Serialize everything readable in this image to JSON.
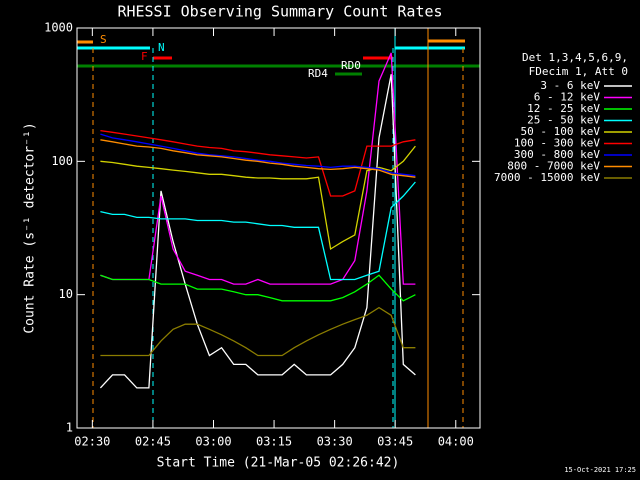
{
  "chart_data": {
    "type": "line",
    "title": "RHESSI Observing Summary Count Rates",
    "x_label": "Start Time (21-Mar-05 02:26:42)",
    "y_label": "Count Rate (s⁻¹ detector⁻¹)",
    "footer": "15-Oct-2021 17:25",
    "legend_title": [
      "Det 1,3,4,5,6,9,",
      "FDecim 1, Att 0"
    ],
    "annotations": [
      "S",
      "N",
      "F",
      "RD0",
      "RD4"
    ],
    "log_y": true,
    "xlim": [
      146.2,
      246.0
    ],
    "ylim": [
      1,
      1000
    ],
    "xticks": [
      {
        "value": 150,
        "label": "02:30"
      },
      {
        "value": 165,
        "label": "02:45"
      },
      {
        "value": 180,
        "label": "03:00"
      },
      {
        "value": 195,
        "label": "03:15"
      },
      {
        "value": 210,
        "label": "03:30"
      },
      {
        "value": 225,
        "label": "03:45"
      },
      {
        "value": 240,
        "label": "04:00"
      }
    ],
    "yticks": [
      1,
      10,
      100,
      1000
    ],
    "x": [
      152,
      155,
      158,
      161,
      164,
      167,
      170,
      173,
      176,
      179,
      182,
      185,
      188,
      191,
      194,
      197,
      200,
      203,
      206,
      209,
      212,
      215,
      218,
      221,
      224,
      227,
      230
    ],
    "series": [
      {
        "name": "3 - 6 keV",
        "color": "#ffffff",
        "values": [
          2,
          2.5,
          2.5,
          2,
          2,
          60,
          25,
          12,
          6,
          3.5,
          4,
          3,
          3,
          2.5,
          2.5,
          2.5,
          3,
          2.5,
          2.5,
          2.5,
          3,
          4,
          8,
          150,
          450,
          3,
          2.5
        ]
      },
      {
        "name": "6 - 12 keV",
        "color": "#ff00ff",
        "values": [
          14,
          13,
          13,
          13,
          13,
          55,
          22,
          15,
          14,
          13,
          13,
          12,
          12,
          13,
          12,
          12,
          12,
          12,
          12,
          12,
          13,
          18,
          60,
          400,
          650,
          12,
          12
        ]
      },
      {
        "name": "12 - 25 keV",
        "color": "#00ff00",
        "values": [
          14,
          13,
          13,
          13,
          13,
          12,
          12,
          12,
          11,
          11,
          11,
          10.5,
          10,
          10,
          9.5,
          9,
          9,
          9,
          9,
          9,
          9.5,
          10.5,
          12,
          14,
          11,
          9,
          10
        ]
      },
      {
        "name": "25 - 50 keV",
        "color": "#00ffff",
        "values": [
          42,
          40,
          40,
          38,
          38,
          37,
          37,
          37,
          36,
          36,
          36,
          35,
          35,
          34,
          33,
          33,
          32,
          32,
          32,
          13,
          13,
          13,
          14,
          15,
          45,
          55,
          70
        ]
      },
      {
        "name": "50 - 100 keV",
        "color": "#d2d200",
        "values": [
          100,
          98,
          95,
          92,
          90,
          88,
          86,
          84,
          82,
          80,
          80,
          78,
          76,
          75,
          75,
          74,
          74,
          74,
          76,
          22,
          25,
          28,
          85,
          90,
          85,
          100,
          130
        ]
      },
      {
        "name": "100 - 300 keV",
        "color": "#ff0000",
        "values": [
          170,
          165,
          160,
          155,
          150,
          145,
          140,
          135,
          130,
          127,
          125,
          120,
          118,
          115,
          112,
          110,
          108,
          106,
          108,
          55,
          55,
          60,
          130,
          130,
          130,
          140,
          145
        ]
      },
      {
        "name": "300 - 800 keV",
        "color": "#0000ff",
        "values": [
          160,
          150,
          145,
          140,
          135,
          130,
          125,
          120,
          115,
          112,
          110,
          108,
          105,
          102,
          100,
          97,
          95,
          93,
          92,
          90,
          92,
          92,
          90,
          88,
          82,
          80,
          78
        ]
      },
      {
        "name": "800 - 7000 keV",
        "color": "#ff8c00",
        "values": [
          145,
          140,
          135,
          130,
          128,
          125,
          120,
          116,
          112,
          110,
          108,
          105,
          102,
          100,
          97,
          95,
          92,
          90,
          88,
          87,
          88,
          90,
          88,
          86,
          80,
          78,
          76
        ]
      },
      {
        "name": "7000 - 15000 keV",
        "color": "#8b7d00",
        "values": [
          3.5,
          3.5,
          3.5,
          3.5,
          3.5,
          4.5,
          5.5,
          6,
          6,
          5.5,
          5,
          4.5,
          4,
          3.5,
          3.5,
          3.5,
          4,
          4.5,
          5,
          5.5,
          6,
          6.5,
          7,
          8,
          7,
          4,
          4
        ]
      }
    ]
  }
}
